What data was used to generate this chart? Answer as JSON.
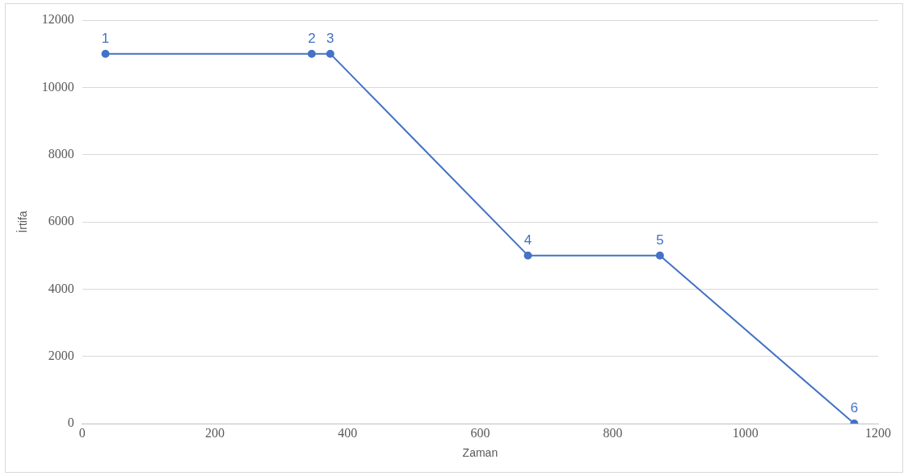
{
  "chart_data": {
    "type": "line",
    "xlabel": "Zaman",
    "ylabel": "İrtifa",
    "x": [
      35,
      346,
      374,
      672,
      871,
      1164
    ],
    "series": [
      {
        "color": "#4472c4",
        "values": [
          11000,
          11000,
          11000,
          5000,
          5000,
          0
        ]
      }
    ],
    "xlim": [
      0,
      1200
    ],
    "xticks": [
      0,
      200,
      400,
      600,
      800,
      1000,
      1200
    ],
    "ylim": [
      0,
      12000
    ],
    "yticks": [
      0,
      2000,
      4000,
      6000,
      8000,
      10000,
      12000
    ],
    "grid": "y",
    "legend": false,
    "marker": "circle",
    "line_style": "solid",
    "annotations": [
      {
        "text": "1",
        "x": 35,
        "y": 11000
      },
      {
        "text": "2",
        "x": 346,
        "y": 11000
      },
      {
        "text": "3",
        "x": 374,
        "y": 11000
      },
      {
        "text": "4",
        "x": 672,
        "y": 5000
      },
      {
        "text": "5",
        "x": 871,
        "y": 5000
      },
      {
        "text": "6",
        "x": 1164,
        "y": 0
      }
    ]
  }
}
